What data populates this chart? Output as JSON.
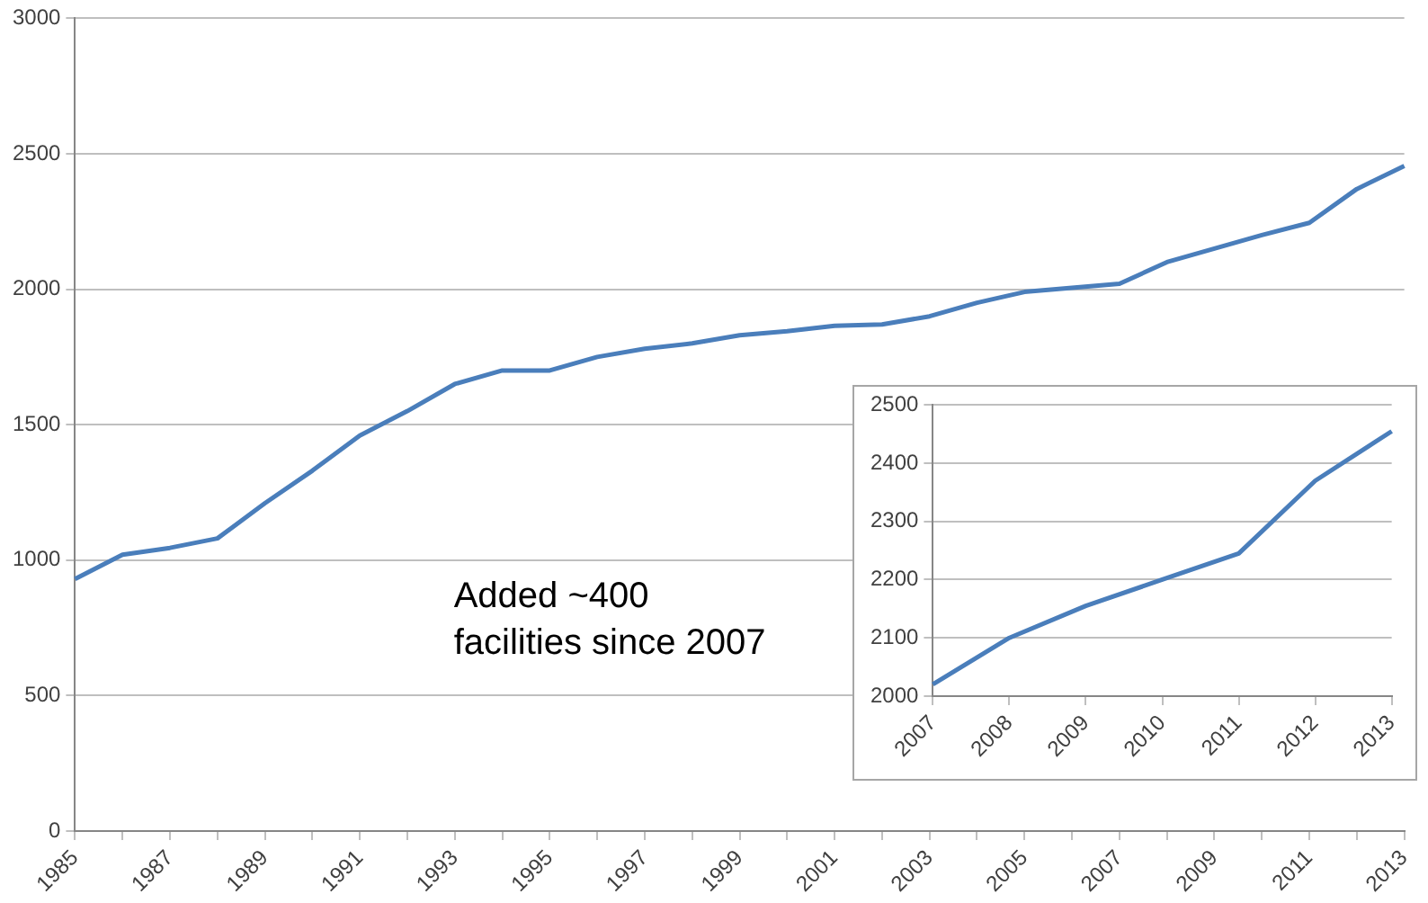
{
  "chart_data": [
    {
      "type": "line",
      "categories": [
        "1985",
        null,
        "1987",
        null,
        "1989",
        null,
        "1991",
        null,
        "1993",
        null,
        "1995",
        null,
        "1997",
        null,
        "1999",
        null,
        "2001",
        null,
        "2003",
        null,
        "2005",
        null,
        "2007",
        null,
        "2009",
        null,
        "2011",
        null,
        "2013"
      ],
      "values": [
        930,
        1020,
        1045,
        1080,
        1210,
        1330,
        1460,
        1550,
        1650,
        1700,
        1700,
        1750,
        1780,
        1800,
        1830,
        1845,
        1865,
        1870,
        1900,
        1950,
        1990,
        2005,
        2020,
        2100,
        2150,
        2200,
        2245,
        2370,
        2455
      ],
      "color": "#4a7ebb",
      "ylim": [
        0,
        3000
      ],
      "yticks": [
        0,
        500,
        1000,
        1500,
        2000,
        2500,
        3000
      ],
      "grid": "y",
      "marker": "none",
      "annotations": [
        "Added ~400\nfacilities since 2007"
      ]
    },
    {
      "type": "line",
      "categories": [
        "2007",
        "2008",
        "2009",
        "2010",
        "2011",
        "2012",
        "2013"
      ],
      "values": [
        2020,
        2100,
        2155,
        2200,
        2245,
        2370,
        2455
      ],
      "color": "#4a7ebb",
      "ylim": [
        2000,
        2500
      ],
      "yticks": [
        2000,
        2100,
        2200,
        2300,
        2400,
        2500
      ],
      "grid": "y",
      "marker": "none"
    }
  ]
}
